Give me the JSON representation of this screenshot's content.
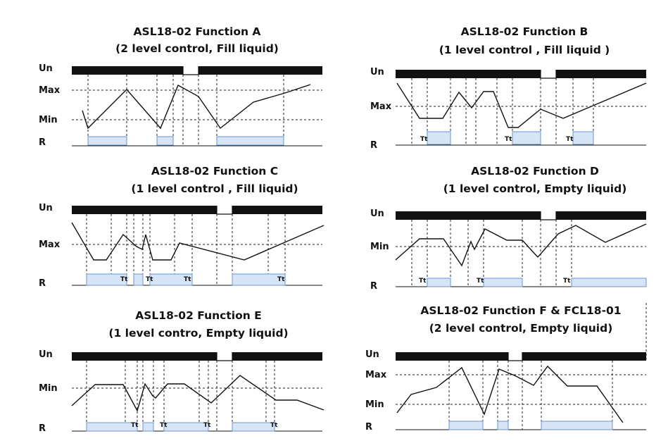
{
  "panels": [
    {
      "id": "A",
      "title_line1": "ASL18-02   Function A",
      "title_line2": "(2 level control, Fill liquid)",
      "labels": {
        "un": "Un",
        "upper": "Max",
        "lower": "Min",
        "r": "R"
      },
      "tt_labels": [
        "",
        "",
        ""
      ]
    },
    {
      "id": "B",
      "title_line1": "ASL18-02   Function B",
      "title_line2": "(1 level control , Fill liquid )",
      "labels": {
        "un": "Un",
        "upper": "",
        "lower": "Max",
        "r": "R"
      },
      "tt_labels": [
        "Tt",
        "Tt",
        "Tt"
      ]
    },
    {
      "id": "C",
      "title_line1": "ASL18-02 Function C",
      "title_line2": "(1 level control , Fill liquid)",
      "labels": {
        "un": "Un",
        "upper": "",
        "lower": "Max",
        "r": "R"
      },
      "tt_labels": [
        "Tt",
        "Tt",
        "Tt",
        "Tt"
      ]
    },
    {
      "id": "D",
      "title_line1": "ASL18-02  Function D",
      "title_line2": "(1 level control, Empty liquid)",
      "labels": {
        "un": "Un",
        "upper": "",
        "lower": "Min",
        "r": "R"
      },
      "tt_labels": [
        "Tt",
        "Tt",
        "Tt"
      ]
    },
    {
      "id": "E",
      "title_line1": "ASL18-02  Function E",
      "title_line2": "(1 level contro, Empty liquid)",
      "labels": {
        "un": "Un",
        "upper": "",
        "lower": "Min",
        "r": "R"
      },
      "tt_labels": [
        "Tt",
        "Tt",
        "Tt",
        "Tt"
      ]
    },
    {
      "id": "F",
      "title_line1": "ASL18-02   Function F  &   FCL18-01",
      "title_line2": "(2 level control, Empty liquid)",
      "labels": {
        "un": "Un",
        "upper": "Max",
        "lower": "Min",
        "r": "R"
      },
      "tt_labels": [
        "",
        "",
        ""
      ]
    }
  ],
  "colors": {
    "supply_bar": "#111111",
    "relay_fill": "#d6e4f5",
    "relay_border": "#6b96cf",
    "line": "#111111"
  }
}
